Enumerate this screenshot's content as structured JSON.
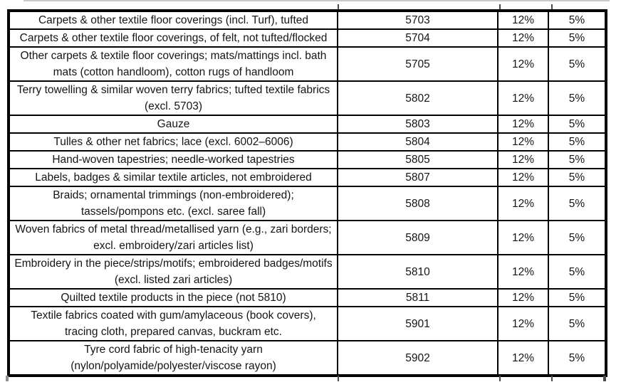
{
  "colors": {
    "background": "#ffffff",
    "border": "#000000",
    "text": "#151515",
    "crop_artifact": "#c9c9c9"
  },
  "table": {
    "rows": [
      {
        "description": "Carpets & other textile floor coverings (incl. Turf), tufted",
        "hsn_code": "5703",
        "rate_old": "12%",
        "rate_new": "5%"
      },
      {
        "description": "Carpets & other textile floor coverings, of felt, not tufted/flocked",
        "hsn_code": "5704",
        "rate_old": "12%",
        "rate_new": "5%"
      },
      {
        "description": "Other carpets & textile floor coverings; mats/mattings incl. bath mats (cotton handloom), cotton rugs of handloom",
        "hsn_code": "5705",
        "rate_old": "12%",
        "rate_new": "5%"
      },
      {
        "description": "Terry towelling & similar woven terry fabrics; tufted textile fabrics (excl. 5703)",
        "hsn_code": "5802",
        "rate_old": "12%",
        "rate_new": "5%"
      },
      {
        "description": "Gauze",
        "hsn_code": "5803",
        "rate_old": "12%",
        "rate_new": "5%"
      },
      {
        "description": "Tulles & other net fabrics; lace (excl. 6002–6006)",
        "hsn_code": "5804",
        "rate_old": "12%",
        "rate_new": "5%"
      },
      {
        "description": "Hand-woven tapestries; needle-worked tapestries",
        "hsn_code": "5805",
        "rate_old": "12%",
        "rate_new": "5%"
      },
      {
        "description": "Labels, badges & similar textile articles, not embroidered",
        "hsn_code": "5807",
        "rate_old": "12%",
        "rate_new": "5%"
      },
      {
        "description": "Braids; ornamental trimmings (non-embroidered); tassels/pompons etc. (excl. saree fall)",
        "hsn_code": "5808",
        "rate_old": "12%",
        "rate_new": "5%"
      },
      {
        "description": "Woven fabrics of metal thread/metallised yarn (e.g., zari borders; excl. embroidery/zari articles list)",
        "hsn_code": "5809",
        "rate_old": "12%",
        "rate_new": "5%"
      },
      {
        "description": "Embroidery in the piece/strips/motifs; embroidered badges/motifs (excl. listed zari articles)",
        "hsn_code": "5810",
        "rate_old": "12%",
        "rate_new": "5%"
      },
      {
        "description": "Quilted textile products in the piece (not 5810)",
        "hsn_code": "5811",
        "rate_old": "12%",
        "rate_new": "5%"
      },
      {
        "description": "Textile fabrics coated with gum/amylaceous (book covers), tracing cloth, prepared canvas, buckram etc.",
        "hsn_code": "5901",
        "rate_old": "12%",
        "rate_new": "5%"
      },
      {
        "description": "Tyre cord fabric of high-tenacity yarn (nylon/polyamide/polyester/viscose rayon)",
        "hsn_code": "5902",
        "rate_old": "12%",
        "rate_new": "5%"
      }
    ]
  }
}
